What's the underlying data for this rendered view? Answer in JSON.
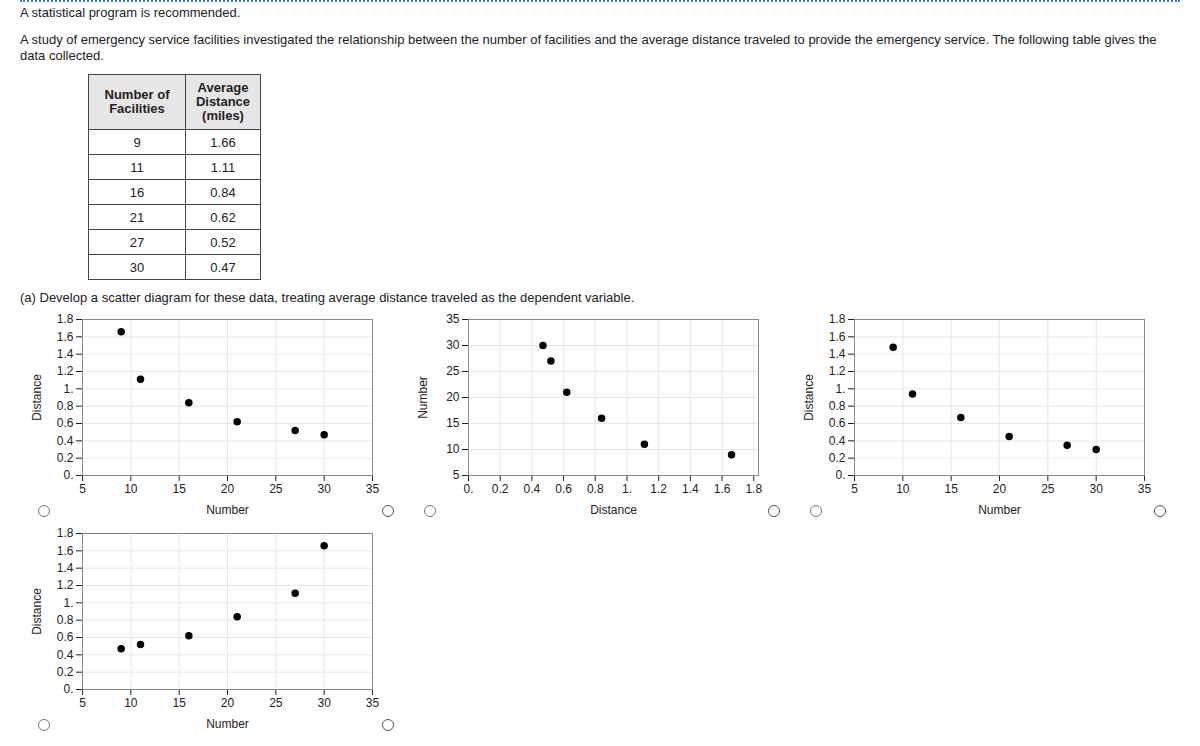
{
  "header": "A statistical program is recommended.",
  "intro": "A study of emergency service facilities investigated the relationship between the number of facilities and the average distance traveled to provide the emergency service. The following table gives the data collected.",
  "table": {
    "columns": [
      "Number of Facilities",
      "Average Distance (miles)"
    ],
    "rows": [
      [
        9,
        1.66
      ],
      [
        11,
        1.11
      ],
      [
        16,
        0.84
      ],
      [
        21,
        0.62
      ],
      [
        27,
        0.52
      ],
      [
        30,
        0.47
      ]
    ]
  },
  "question": "(a) Develop a scatter diagram for these data, treating average distance traveled as the dependent variable.",
  "chart_data": [
    {
      "type": "scatter",
      "x_label": "Number",
      "y_label": "Distance",
      "x": [
        9,
        11,
        16,
        21,
        27,
        30
      ],
      "values": [
        1.66,
        1.11,
        0.84,
        0.62,
        0.52,
        0.47
      ],
      "color": "#000000",
      "marker": "circle",
      "xlim": [
        5,
        35
      ],
      "xticks": [
        5,
        10,
        15,
        20,
        25,
        30,
        35
      ],
      "ylim": [
        0,
        1.8
      ],
      "yticks": [
        {
          "value": 0,
          "label": "0."
        },
        0.2,
        0.4,
        0.6,
        0.8,
        {
          "value": 1,
          "label": "1."
        },
        1.2,
        1.4,
        1.6,
        1.8
      ],
      "grid": true
    },
    {
      "type": "scatter",
      "x_label": "Distance",
      "y_label": "Number",
      "x": [
        0.47,
        0.52,
        0.62,
        0.84,
        1.11,
        1.66
      ],
      "values": [
        30,
        27,
        21,
        16,
        11,
        9
      ],
      "color": "#000000",
      "marker": "circle",
      "xlim": [
        0,
        1.83
      ],
      "xticks": [
        {
          "value": 0,
          "label": "0."
        },
        0.2,
        0.4,
        0.6,
        0.8,
        {
          "value": 1,
          "label": "1."
        },
        1.2,
        1.4,
        1.6,
        1.8
      ],
      "ylim": [
        5,
        35
      ],
      "yticks": [
        5,
        10,
        15,
        20,
        25,
        30,
        35
      ],
      "grid": true
    },
    {
      "type": "scatter",
      "x_label": "Number",
      "y_label": "Distance",
      "x": [
        9,
        11,
        16,
        21,
        27,
        30
      ],
      "values": [
        1.48,
        0.94,
        0.67,
        0.45,
        0.35,
        0.3
      ],
      "color": "#000000",
      "marker": "circle",
      "xlim": [
        5,
        35
      ],
      "xticks": [
        5,
        10,
        15,
        20,
        25,
        30,
        35
      ],
      "ylim": [
        0,
        1.8
      ],
      "yticks": [
        {
          "value": 0,
          "label": "0."
        },
        0.2,
        0.4,
        0.6,
        0.8,
        {
          "value": 1,
          "label": "1."
        },
        1.2,
        1.4,
        1.6,
        1.8
      ],
      "grid": true
    },
    {
      "type": "scatter",
      "x_label": "Number",
      "y_label": "Distance",
      "x": [
        9,
        11,
        16,
        21,
        27,
        30
      ],
      "values": [
        0.47,
        0.52,
        0.62,
        0.84,
        1.11,
        1.66
      ],
      "color": "#000000",
      "marker": "circle",
      "xlim": [
        5,
        35
      ],
      "xticks": [
        5,
        10,
        15,
        20,
        25,
        30,
        35
      ],
      "ylim": [
        0,
        1.8
      ],
      "yticks": [
        {
          "value": 0,
          "label": "0."
        },
        0.2,
        0.4,
        0.6,
        0.8,
        {
          "value": 1,
          "label": "1."
        },
        1.2,
        1.4,
        1.6,
        1.8
      ],
      "grid": true
    }
  ]
}
